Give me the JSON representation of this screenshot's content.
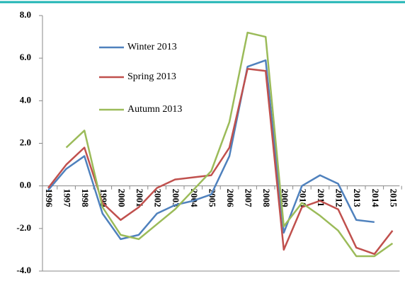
{
  "chart_data": {
    "type": "line",
    "categories": [
      "1996",
      "1997",
      "1998",
      "1999",
      "2000",
      "2001",
      "2002",
      "2003",
      "2004",
      "2005",
      "2006",
      "2007",
      "2008",
      "2009",
      "2010",
      "2011",
      "2012",
      "2013",
      "2014",
      "2015"
    ],
    "series": [
      {
        "name": "Winter 2013",
        "color": "#4f81bd",
        "values": [
          -0.2,
          0.8,
          1.4,
          -1.3,
          -2.5,
          -2.3,
          -1.3,
          -0.9,
          -0.7,
          -0.4,
          1.4,
          5.6,
          5.9,
          -2.2,
          0.0,
          0.5,
          0.1,
          -1.6,
          -1.7,
          null
        ]
      },
      {
        "name": "Spring 2013",
        "color": "#c0504d",
        "values": [
          -0.1,
          1.0,
          1.8,
          -0.8,
          -1.6,
          -1.0,
          -0.1,
          0.3,
          0.4,
          0.5,
          1.8,
          5.5,
          5.4,
          -3.0,
          -1.0,
          -0.7,
          -1.1,
          -2.9,
          -3.2,
          -2.1
        ]
      },
      {
        "name": "Autumn 2013",
        "color": "#9bbb59",
        "values": [
          null,
          1.8,
          2.6,
          -1.0,
          -2.3,
          -2.5,
          -1.8,
          -1.1,
          -0.2,
          0.7,
          3.0,
          7.2,
          7.0,
          -1.9,
          -0.8,
          -1.4,
          -2.1,
          -3.3,
          -3.3,
          -2.7
        ]
      }
    ],
    "ylim": [
      -4,
      8
    ],
    "yticks": [
      {
        "value": -4,
        "label": "-4.0"
      },
      {
        "value": -2,
        "label": "-2.0"
      },
      {
        "value": 0,
        "label": "0.0"
      },
      {
        "value": 2,
        "label": "2.0"
      },
      {
        "value": 4,
        "label": "4.0"
      },
      {
        "value": 6,
        "label": "6.0"
      },
      {
        "value": 8,
        "label": "8.0"
      }
    ]
  }
}
